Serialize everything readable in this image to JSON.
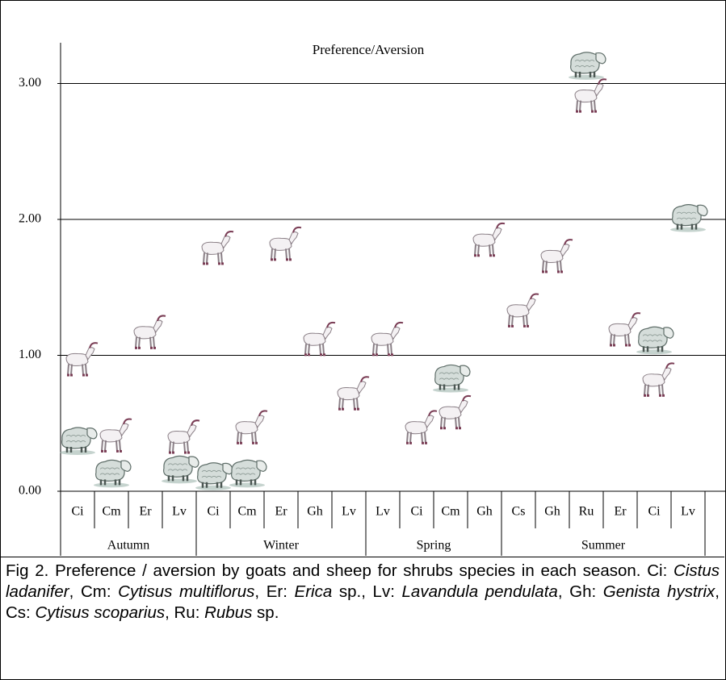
{
  "chart_data": {
    "type": "icon-scatter",
    "title": "Preference/Aversion",
    "groups": [
      {
        "name": "Autumn",
        "categories": [
          "Ci",
          "Cm",
          "Er",
          "Lv"
        ]
      },
      {
        "name": "Winter",
        "categories": [
          "Ci",
          "Cm",
          "Er",
          "Gh",
          "Lv"
        ]
      },
      {
        "name": "Spring",
        "categories": [
          "Lv",
          "Ci",
          "Cm",
          "Gh"
        ]
      },
      {
        "name": "Summer",
        "categories": [
          "Cs",
          "Gh",
          "Ru",
          "Er",
          "Ci",
          "Lv"
        ]
      }
    ],
    "series": [
      {
        "marker": "goat",
        "values": [
          0.97,
          0.41,
          1.17,
          0.4,
          1.79,
          0.47,
          1.82,
          1.12,
          0.72,
          1.12,
          0.47,
          0.58,
          1.85,
          1.33,
          1.73,
          2.91,
          1.19,
          0.82,
          null
        ]
      },
      {
        "marker": "sheep",
        "values": [
          0.38,
          0.14,
          null,
          0.17,
          0.12,
          0.14,
          null,
          null,
          null,
          null,
          null,
          0.84,
          null,
          null,
          null,
          3.14,
          null,
          1.12,
          2.02
        ]
      }
    ],
    "ylim": [
      0,
      3.3
    ],
    "yticks": [
      {
        "value": 0,
        "label": "0.00"
      },
      {
        "value": 1,
        "label": "1.00"
      },
      {
        "value": 2,
        "label": "2.00"
      },
      {
        "value": 3,
        "label": "3.00"
      }
    ],
    "grid": true
  },
  "caption": [
    {
      "text": "Fig 2. Preference / aversion by goats and sheep for shrubs species in each season. Ci: ",
      "italic": false
    },
    {
      "text": "Cistus ladanifer",
      "italic": true
    },
    {
      "text": ", Cm: ",
      "italic": false
    },
    {
      "text": "Cytisus multiflorus",
      "italic": true
    },
    {
      "text": ", Er: ",
      "italic": false
    },
    {
      "text": "Erica",
      "italic": true
    },
    {
      "text": " sp., Lv: ",
      "italic": false
    },
    {
      "text": "Lavandula pendulata",
      "italic": true
    },
    {
      "text": ", Gh: ",
      "italic": false
    },
    {
      "text": "Genista hystrix",
      "italic": true
    },
    {
      "text": ", Cs: ",
      "italic": false
    },
    {
      "text": "Cytisus scoparius",
      "italic": true
    },
    {
      "text": ", Ru: ",
      "italic": false
    },
    {
      "text": "Rubus",
      "italic": true
    },
    {
      "text": " sp.",
      "italic": false
    }
  ]
}
